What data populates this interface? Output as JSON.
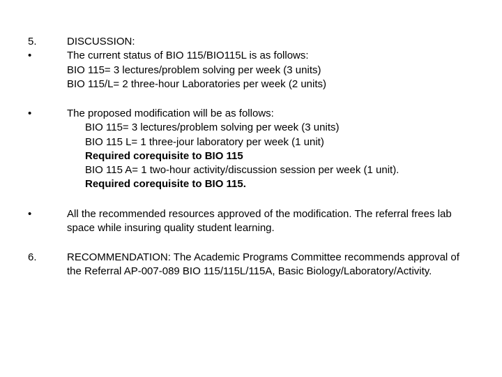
{
  "fontsize_pt": 15,
  "text_color": "#000000",
  "background_color": "#ffffff",
  "font_family": "Arial",
  "sections": {
    "s1": {
      "marker1": "5.",
      "marker2": "•",
      "heading": "DISCUSSION:",
      "line1": "The current status of BIO 115/BIO115L is as follows:",
      "line2": "BIO 115= 3 lectures/problem solving per week (3 units)",
      "line3": "BIO 115/L= 2 three-hour Laboratories per week (2 units)"
    },
    "s2": {
      "marker": "•",
      "line1": "The proposed modification will be as follows:",
      "sub1": "BIO 115= 3 lectures/problem solving per week (3 units)",
      "sub2": "BIO 115 L= 1 three-jour laboratory per week (1 unit)",
      "sub3": "Required corequisite to BIO 115",
      "sub4": "BIO 115 A= 1 two-hour activity/discussion session per week (1 unit).",
      "sub5": "Required corequisite to BIO 115."
    },
    "s3": {
      "marker": "•",
      "text": "All the recommended resources approved of the modification.  The referral frees lab space while insuring quality student learning."
    },
    "s4": {
      "marker": "6.",
      "text": "RECOMMENDATION:  The Academic Programs Committee recommends approval of the Referral AP-007-089 BIO 115/115L/115A, Basic Biology/Laboratory/Activity."
    }
  }
}
